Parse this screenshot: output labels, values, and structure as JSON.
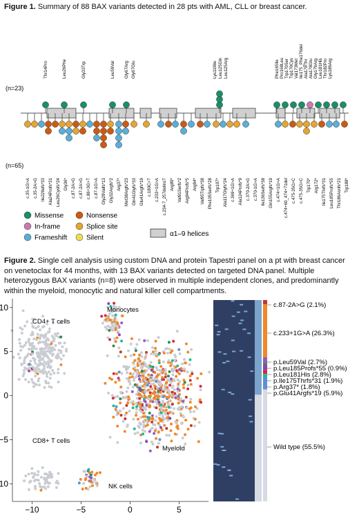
{
  "figure1": {
    "caption_label": "Figure 1.",
    "caption_text": " Summary of 88 BAX variants detected in 28 pts with AML, CLL or breast cancer.",
    "n_top": "(n=23)",
    "n_bottom": "(n=65)",
    "top_labels": [
      "Thr14Pro",
      "Leu26Phe",
      "Gly33Trp",
      "Leu59Val",
      "Gly67Arg",
      "Gly67Glu",
      "Lys119Ile",
      "Leu125Gln",
      "Leu125Arg",
      "Phe165Ile",
      "Pro168Leu",
      "Trp170Ser",
      "Trp170Cys",
      "Val173Met",
      "Ile175_Phe176del",
      "Ala178Thr",
      "Ala178Glu",
      "Gly179Arg",
      "Leu181His",
      "Thr182Pro",
      "Lys189Arg"
    ],
    "bottom_labels": [
      "c.35-1G>A",
      "c.35-2A>G",
      "Ile22Ilefs*33",
      "Ala24Profs*31",
      "Leu26Cysfs*24",
      "Gly36*",
      "c.87-2A>G",
      "c.87-2A>G",
      "c.86+3G>T",
      "c.87-1G>A",
      "Gly29Valfs*13",
      "Gly32Argfs*2",
      "Arg37*",
      "Met38Argfs*23",
      "Gln41Glyfs*33",
      "Glu41Argfs*19",
      "c.180C>T",
      "c.233+1G>A",
      "c.234-7_257delinsT",
      "Arg89*",
      "Val91Serfs*2",
      "Arg94Profs*5",
      "Arg94*",
      "Val95Trpfs*38",
      "Phe105Serfs*28",
      "Trp107*",
      "Ala117Glyfs*24",
      "c.369+1G>A",
      "Ala124Profs*9",
      "c.370-2A>G",
      "c.370-1G>A",
      "Ile136Serfs*38",
      "Gln155Argfs*19",
      "c.474+1G>A",
      "c.474+60_474+71del",
      "c.475-35G>C",
      "c.475-35G>C",
      "Trp170*",
      "Arg172*",
      "Ile175Thrfs*31",
      "Leu185Profs*55",
      "Thr186Asnfs*21",
      "Trp188*"
    ],
    "legend": [
      {
        "label": "Missense",
        "color": "#1a8f6a"
      },
      {
        "label": "In-frame",
        "color": "#c77bb4"
      },
      {
        "label": "Frameshift",
        "color": "#5aaed9"
      },
      {
        "label": "Nonsense",
        "color": "#cc5a12"
      },
      {
        "label": "Splice site",
        "color": "#e5a533"
      },
      {
        "label": "Silent",
        "color": "#e9df52"
      }
    ],
    "helix_legend": "α1–9 helices"
  },
  "figure2": {
    "caption_label": "Figure 2.",
    "caption_text": " Single cell analysis using custom DNA and protein Tapestri panel on a pt with breast cancer on venetoclax for 44 months, with 13 BAX variants detected on targeted DNA panel. Multiple heterozygous BAX variants (n=8) were observed in multiple independent clones, and predominantly within the myeloid, monocytic and natural killer cell compartments.",
    "clusters": [
      "CD4+ T cells",
      "Monocytes",
      "CD8+ T cells",
      "Myeloid",
      "NK cells"
    ]
  },
  "chart_data": {
    "type": "scatter",
    "title": "",
    "xlabel": "",
    "ylabel": "",
    "xlim": [
      -12,
      8
    ],
    "ylim": [
      -12,
      11
    ],
    "xticks": [
      "−10",
      "−5",
      "0",
      "5"
    ],
    "yticks": [
      "10",
      "5",
      "0",
      "−5",
      "−10"
    ],
    "annotations": [
      "CD4+ T cells",
      "Monocytes",
      "CD8+ T cells",
      "Myeloid",
      "NK cells"
    ],
    "heatmap_variants": [
      {
        "label": "c.87-2A>G (2.1%)",
        "color": "#c0392b",
        "fraction": 0.021
      },
      {
        "label": "c.233+1G>A (26.3%)",
        "color": "#f0882a",
        "fraction": 0.263
      },
      {
        "label": "p.Leu59Val (2.7%)",
        "color": "#9b59b6",
        "fraction": 0.027
      },
      {
        "label": "p.Leu185Profs*55 (0.9%)",
        "color": "#2e8b57",
        "fraction": 0.009
      },
      {
        "label": "p.Leu181His (2.8%)",
        "color": "#8e44ad",
        "fraction": 0.028
      },
      {
        "label": "p.Ile175Thrfs*31 (1.9%)",
        "color": "#d62839",
        "fraction": 0.019
      },
      {
        "label": "p.Arg37* (1.8%)",
        "color": "#1abc9c",
        "fraction": 0.018
      },
      {
        "label": "p.Glu41Argfs*19 (5.9%)",
        "color": "#5f8fd4",
        "fraction": 0.059
      },
      {
        "label": "Wild type (55.5%)",
        "color": "#d5dae3",
        "fraction": 0.555
      }
    ]
  }
}
